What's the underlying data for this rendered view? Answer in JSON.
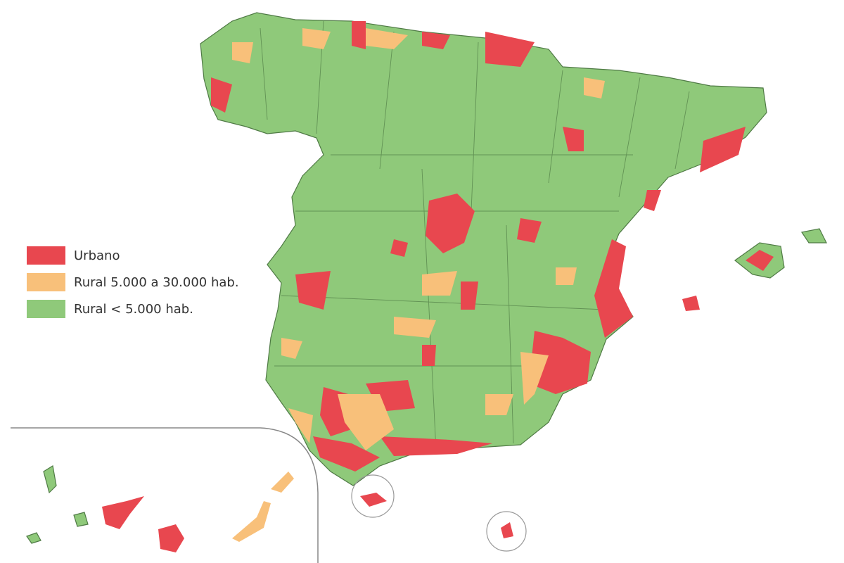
{
  "legend": {
    "items": [
      {
        "label": "Urbano",
        "color": "#e8474f"
      },
      {
        "label": "Rural 5.000 a 30.000 hab.",
        "color": "#f8c07a"
      },
      {
        "label": "Rural < 5.000 hab.",
        "color": "#8fc97a"
      }
    ]
  }
}
